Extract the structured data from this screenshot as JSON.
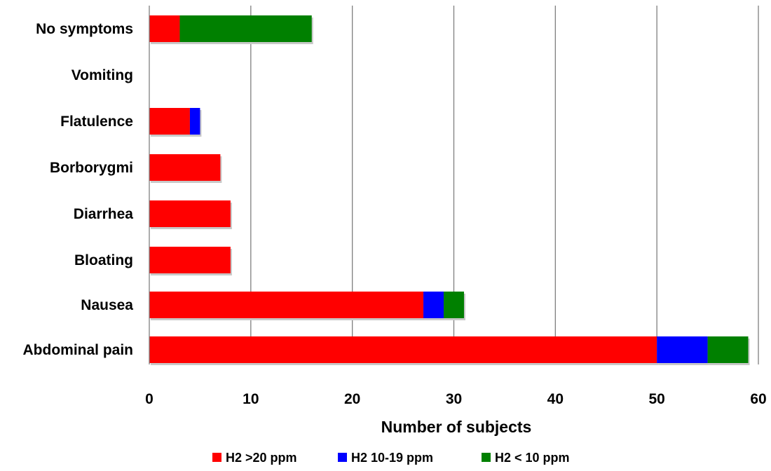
{
  "chart_data": {
    "type": "bar",
    "orientation": "horizontal",
    "stacked": true,
    "categories": [
      "No symptoms",
      "Vomiting",
      "Flatulence",
      "Borborygmi",
      "Diarrhea",
      "Bloating",
      "Nausea",
      "Abdominal pain"
    ],
    "series": [
      {
        "name": "H2 >20 ppm",
        "color": "#ff0000",
        "values": [
          3,
          0,
          4,
          7,
          8,
          8,
          27,
          50
        ]
      },
      {
        "name": "H2 10-19 ppm",
        "color": "#0000ff",
        "values": [
          0,
          0,
          1,
          0,
          0,
          0,
          2,
          5
        ]
      },
      {
        "name": "H2 < 10 ppm",
        "color": "#008000",
        "values": [
          13,
          0,
          0,
          0,
          0,
          0,
          2,
          4
        ]
      }
    ],
    "xlabel": "Number of subjects",
    "ylabel": "",
    "xlim": [
      0,
      60
    ],
    "xticks": [
      "0",
      "10",
      "20",
      "30",
      "40",
      "50",
      "60"
    ],
    "grid": "vertical",
    "legend_position": "bottom"
  }
}
